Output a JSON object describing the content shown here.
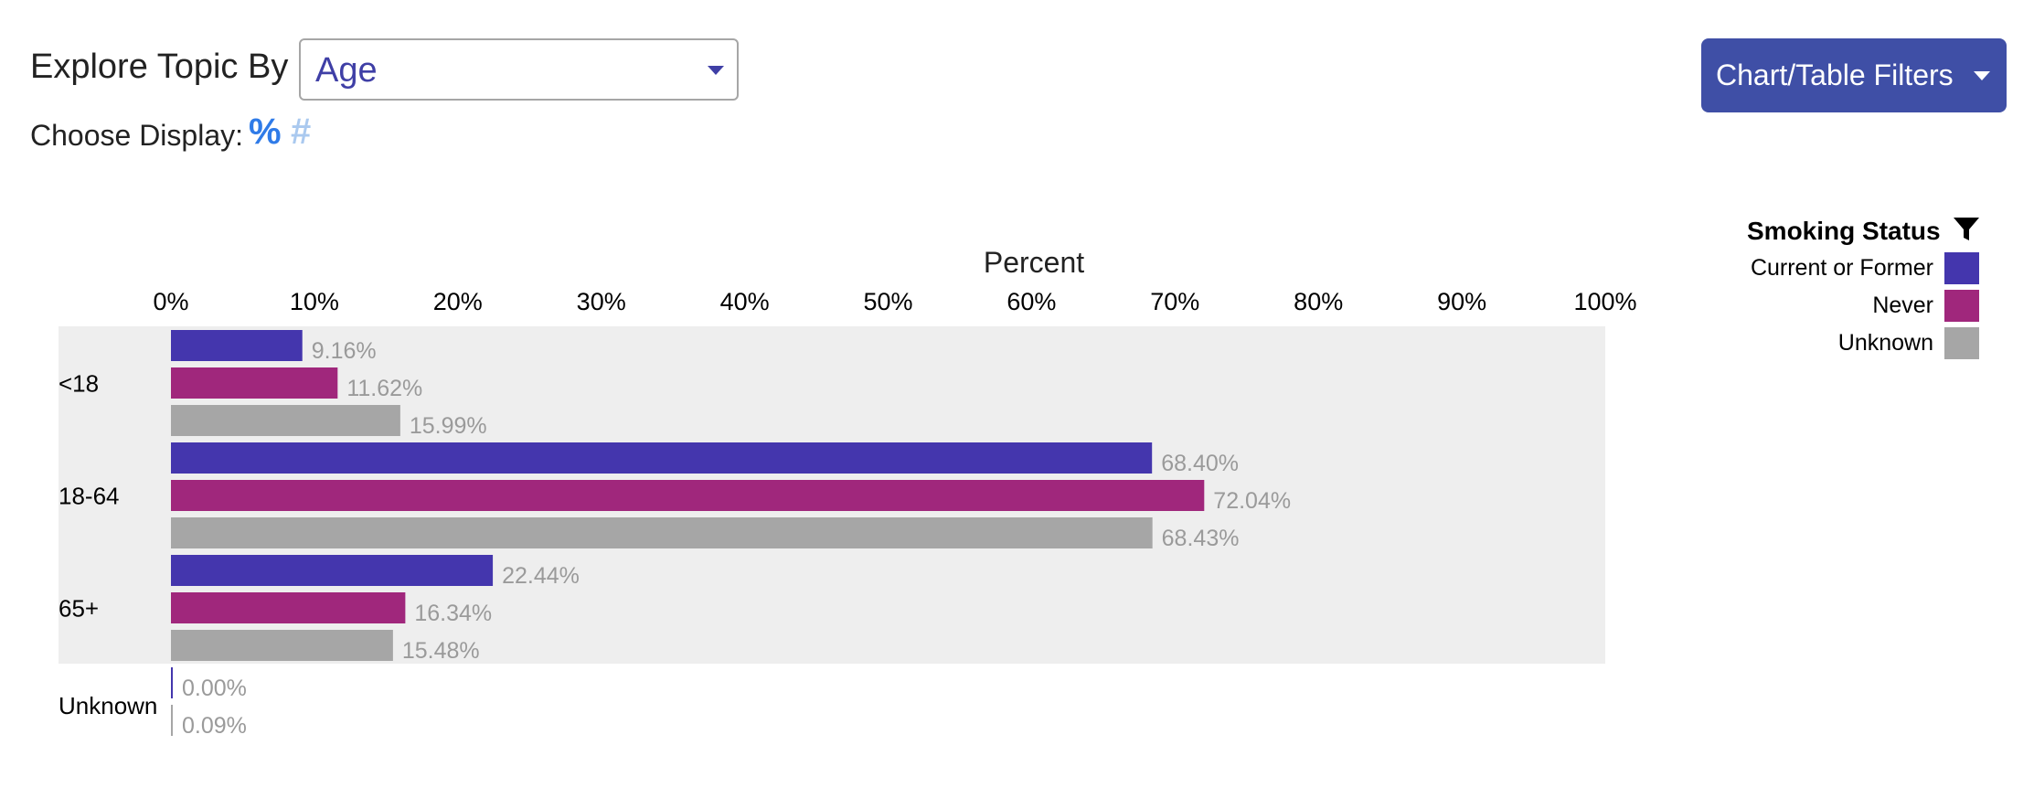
{
  "controls": {
    "explore_label": "Explore Topic By",
    "topic_value": "Age",
    "display_label": "Choose Display:",
    "display_percent_icon": "%",
    "display_count_icon": "#",
    "filters_button_label": "Chart/Table Filters"
  },
  "colors": {
    "accent": "#3f4fa6",
    "percent_active": "#2f7be8",
    "count_inactive": "#aac9ef",
    "current_or_former": "#4436ad",
    "never": "#a0277c",
    "unknown": "#a6a6a6",
    "band": "#eeeeee",
    "value_label": "#9a9a9a"
  },
  "legend": {
    "title": "Smoking Status",
    "items": [
      "Current or Former",
      "Never",
      "Unknown"
    ],
    "filter_icon": "filter-icon"
  },
  "chart_data": {
    "type": "bar",
    "orientation": "horizontal",
    "title": "Percent",
    "xlim": [
      0,
      100
    ],
    "x_ticks": [
      "0%",
      "10%",
      "20%",
      "30%",
      "40%",
      "50%",
      "60%",
      "70%",
      "80%",
      "90%",
      "100%"
    ],
    "categories": [
      "<18",
      "18-64",
      "65+",
      "Unknown"
    ],
    "series": [
      {
        "name": "Current or Former",
        "values": [
          9.16,
          68.4,
          22.44,
          0.0
        ],
        "labels": [
          "9.16%",
          "68.40%",
          "22.44%",
          "0.00%"
        ]
      },
      {
        "name": "Never",
        "values": [
          11.62,
          72.04,
          16.34,
          null
        ],
        "labels": [
          "11.62%",
          "72.04%",
          "16.34%",
          null
        ]
      },
      {
        "name": "Unknown",
        "values": [
          15.99,
          68.43,
          15.48,
          0.09
        ],
        "labels": [
          "15.99%",
          "68.43%",
          "15.48%",
          "0.09%"
        ]
      }
    ],
    "legend_position": "top-right",
    "grid": false
  }
}
